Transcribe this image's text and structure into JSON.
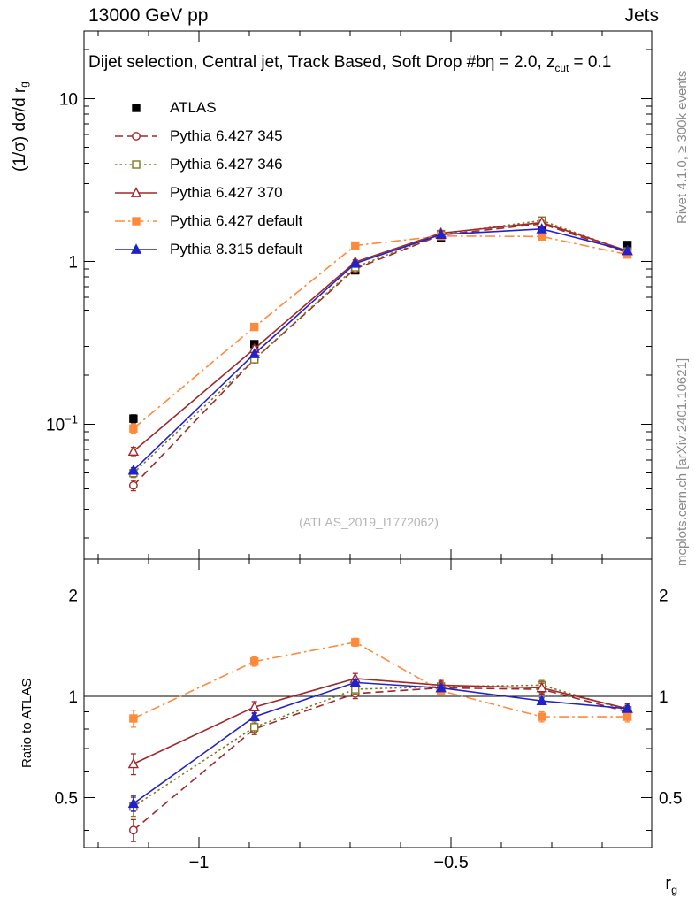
{
  "header": {
    "left": "13000 GeV pp",
    "right": "Jets"
  },
  "title": {
    "part1": "Dijet selection, Central jet, Track Based, Soft Drop #bη = 2.0, z",
    "sub": "cut",
    "part2": " = 0.1"
  },
  "axes": {
    "ylabel_main": "(1/σ) dσ/d r",
    "ylabel_main_sub": "g",
    "ylabel_ratio": "Ratio to ATLAS",
    "xlabel": "r",
    "xlabel_sub": "g"
  },
  "annotations": {
    "rivet": "Rivet 4.1.0, ≥ 300k events",
    "mcplots": "mcplots.cern.ch [arXiv:2401.10621]",
    "watermark": "(ATLAS_2019_I1772062)"
  },
  "colors": {
    "frame": "#000000",
    "note_gray": "#8a8a8a",
    "watermark_gray": "#b5b5b5"
  },
  "chart_data": [
    {
      "id": "main",
      "type": "line",
      "yscale": "log",
      "xlim": [
        -1.228,
        -0.102
      ],
      "ylim": [
        0.0148,
        26
      ],
      "xticks": [
        {
          "v": -1,
          "label": "−1"
        },
        {
          "v": -0.5,
          "label": "−0.5"
        }
      ],
      "yticks": [
        {
          "v": 0.1,
          "label": "10",
          "sup": "−1"
        },
        {
          "v": 1,
          "label": "1"
        },
        {
          "v": 10,
          "label": "10"
        }
      ],
      "ylabels_right": false,
      "x": [
        -1.13,
        -0.89,
        -0.69,
        -0.52,
        -0.32,
        -0.15
      ],
      "series": [
        {
          "name": "ATLAS",
          "color": "#000000",
          "marker": "square-filled",
          "line": "none",
          "values": [
            0.108,
            0.31,
            0.88,
            1.39,
            1.63,
            1.26
          ],
          "errors": [
            0.006,
            0.012,
            0.03,
            0.05,
            0.06,
            0.05
          ]
        },
        {
          "name": "Pythia 6.427 345",
          "color": "#a02828",
          "marker": "circle-open",
          "line": "dashed",
          "values": [
            0.042,
            0.25,
            0.9,
            1.45,
            1.7,
            1.13
          ],
          "errors": [
            0.003,
            0.01,
            0.03,
            0.04,
            0.05,
            0.03
          ]
        },
        {
          "name": "Pythia 6.427 346",
          "color": "#807a22",
          "marker": "square-open",
          "line": "dotted",
          "values": [
            0.05,
            0.25,
            0.92,
            1.47,
            1.78,
            1.15
          ],
          "errors": [
            0.003,
            0.01,
            0.03,
            0.04,
            0.05,
            0.03
          ]
        },
        {
          "name": "Pythia 6.427 370",
          "color": "#a02828",
          "marker": "triangle-open",
          "line": "solid",
          "values": [
            0.068,
            0.29,
            0.99,
            1.49,
            1.73,
            1.16
          ],
          "errors": [
            0.004,
            0.012,
            0.03,
            0.04,
            0.05,
            0.03
          ]
        },
        {
          "name": "Pythia 6.427 default",
          "color": "#ff8a3c",
          "marker": "square-filled",
          "line": "dashdot",
          "values": [
            0.094,
            0.395,
            1.25,
            1.43,
            1.42,
            1.1
          ],
          "errors": [
            0.006,
            0.015,
            0.04,
            0.04,
            0.05,
            0.03
          ]
        },
        {
          "name": "Pythia 8.315 default",
          "color": "#2222cc",
          "marker": "triangle-filled",
          "line": "solid",
          "values": [
            0.052,
            0.27,
            0.97,
            1.46,
            1.58,
            1.16
          ],
          "errors": [
            0.002,
            0.006,
            0.015,
            0.02,
            0.025,
            0.015
          ]
        }
      ]
    },
    {
      "id": "ratio",
      "type": "line",
      "yscale": "log",
      "title": "Ratio to ATLAS",
      "xlim": [
        -1.228,
        -0.102
      ],
      "ylim": [
        0.355,
        2.56
      ],
      "xticks": [
        {
          "v": -1,
          "label": "−1"
        },
        {
          "v": -0.5,
          "label": "−0.5"
        }
      ],
      "yticks": [
        {
          "v": 0.5,
          "label": "0.5"
        },
        {
          "v": 1,
          "label": "1"
        },
        {
          "v": 2,
          "label": "2"
        }
      ],
      "ylabels_right": true,
      "refline": 1,
      "x": [
        -1.13,
        -0.89,
        -0.69,
        -0.52,
        -0.32,
        -0.15
      ],
      "series": [
        {
          "name": "Pythia 6.427 345",
          "color": "#a02828",
          "marker": "circle-open",
          "line": "dashed",
          "values": [
            0.4,
            0.8,
            1.02,
            1.06,
            1.05,
            0.9
          ],
          "errors": [
            0.03,
            0.03,
            0.035,
            0.035,
            0.035,
            0.03
          ]
        },
        {
          "name": "Pythia 6.427 346",
          "color": "#807a22",
          "marker": "square-open",
          "line": "dotted",
          "values": [
            0.47,
            0.81,
            1.05,
            1.07,
            1.08,
            0.91
          ],
          "errors": [
            0.03,
            0.03,
            0.035,
            0.035,
            0.035,
            0.03
          ]
        },
        {
          "name": "Pythia 6.427 370",
          "color": "#a02828",
          "marker": "triangle-open",
          "line": "solid",
          "values": [
            0.63,
            0.93,
            1.13,
            1.08,
            1.06,
            0.92
          ],
          "errors": [
            0.045,
            0.035,
            0.04,
            0.035,
            0.035,
            0.03
          ]
        },
        {
          "name": "Pythia 6.427 default",
          "color": "#ff8a3c",
          "marker": "square-filled",
          "line": "dashdot",
          "values": [
            0.86,
            1.27,
            1.45,
            1.04,
            0.87,
            0.87
          ],
          "errors": [
            0.05,
            0.04,
            0.04,
            0.03,
            0.03,
            0.03
          ]
        },
        {
          "name": "Pythia 8.315 default",
          "color": "#2222cc",
          "marker": "triangle-filled",
          "line": "solid",
          "values": [
            0.48,
            0.87,
            1.1,
            1.06,
            0.97,
            0.92
          ],
          "errors": [
            0.025,
            0.02,
            0.02,
            0.02,
            0.02,
            0.02
          ]
        }
      ]
    }
  ]
}
